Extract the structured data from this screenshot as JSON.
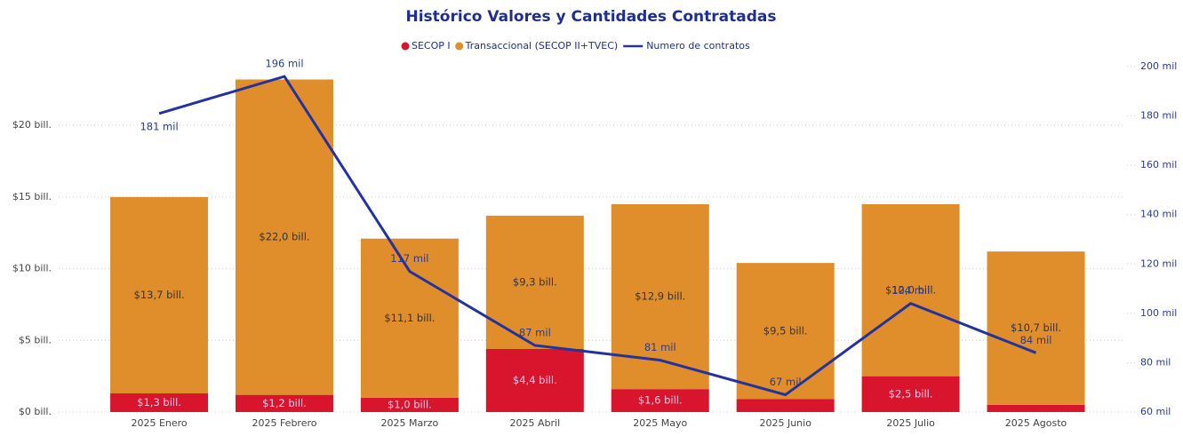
{
  "chart_data": {
    "type": "bar",
    "title": "Histórico Valores y Cantidades Contratadas",
    "categories": [
      "2025 Enero",
      "2025 Febrero",
      "2025 Marzo",
      "2025 Abril",
      "2025 Mayo",
      "2025 Junio",
      "2025 Julio",
      "2025 Agosto"
    ],
    "series": [
      {
        "name": "SECOP I",
        "color": "#d9142d",
        "type": "bar",
        "values": [
          1.3,
          1.2,
          1.0,
          4.4,
          1.6,
          0.9,
          2.5,
          0.5
        ],
        "value_labels": [
          "$1,3 bill.",
          "$1,2 bill.",
          "$1,0 bill.",
          "$4,4 bill.",
          "$1,6 bill.",
          null,
          "$2,5 bill.",
          null
        ]
      },
      {
        "name": "Transaccional (SECOP II+TVEC)",
        "color": "#e08e2b",
        "type": "bar",
        "values": [
          13.7,
          22.0,
          11.1,
          9.3,
          12.9,
          9.5,
          12.0,
          10.7
        ],
        "value_labels": [
          "$13,7 bill.",
          "$22,0 bill.",
          "$11,1 bill.",
          "$9,3 bill.",
          "$12,9 bill.",
          "$9,5 bill.",
          "$12,0 bill.",
          "$10,7 bill."
        ]
      },
      {
        "name": "Numero de contratos",
        "color": "#2432a0",
        "type": "line",
        "axis": "y2",
        "values": [
          181,
          196,
          117,
          87,
          81,
          67,
          104,
          84
        ],
        "value_labels": [
          "181 mil",
          "196 mil",
          "117 mil",
          "87 mil",
          "81 mil",
          "67 mil",
          "104 mil",
          "84 mil"
        ]
      }
    ],
    "stacked": true,
    "ylim": [
      0,
      24.1
    ],
    "yticks": [
      {
        "value": 0,
        "label": "$0 bill."
      },
      {
        "value": 5,
        "label": "$5 bill."
      },
      {
        "value": 10,
        "label": "$10 bill."
      },
      {
        "value": 15,
        "label": "$15 bill."
      },
      {
        "value": 20,
        "label": "$20 bill."
      }
    ],
    "y2lim": [
      60,
      200
    ],
    "y2ticks": [
      {
        "value": 60,
        "label": "60 mil"
      },
      {
        "value": 80,
        "label": "80 mil"
      },
      {
        "value": 100,
        "label": "100 mil"
      },
      {
        "value": 120,
        "label": "120 mil"
      },
      {
        "value": 140,
        "label": "140 mil"
      },
      {
        "value": 160,
        "label": "160 mil"
      },
      {
        "value": 180,
        "label": "180 mil"
      },
      {
        "value": 200,
        "label": "200 mil"
      }
    ],
    "grid": true,
    "legend": "top"
  }
}
